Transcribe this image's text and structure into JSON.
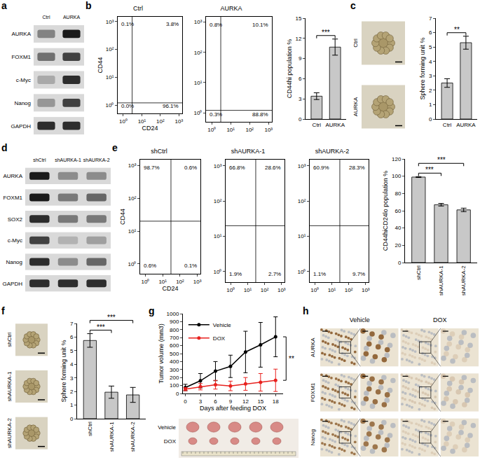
{
  "chart_data": [
    {
      "panel": "b",
      "type": "scatter",
      "title": "Ctrl",
      "log": true,
      "xlabel": "CD24",
      "ylabel": "CD44",
      "xlim": [
        0.5,
        1500
      ],
      "ylim": [
        0.5,
        1500
      ],
      "xticks": [
        {
          "value": 1,
          "label": "10⁰"
        },
        {
          "value": 10,
          "label": "10¹"
        },
        {
          "value": 100,
          "label": "10²"
        },
        {
          "value": 1000,
          "label": "10³"
        }
      ],
      "yticks": [
        {
          "value": 1,
          "label": "10⁰"
        },
        {
          "value": 10,
          "label": "10¹"
        },
        {
          "value": 100,
          "label": "10²"
        },
        {
          "value": 1000,
          "label": "10³"
        }
      ],
      "quadrant_gate": {
        "x": 3,
        "y": 1.2
      },
      "annotations": [
        "0.1%",
        "3.8%",
        "0.0%",
        "96.1%"
      ]
    },
    {
      "panel": "b",
      "type": "scatter",
      "title": "AURKA",
      "log": true,
      "xlim": [
        0.5,
        1500
      ],
      "ylim": [
        0.5,
        1500
      ],
      "xticks": [
        {
          "value": 1,
          "label": "10⁰"
        },
        {
          "value": 10,
          "label": "10¹"
        },
        {
          "value": 100,
          "label": "10²"
        },
        {
          "value": 1000,
          "label": "10³"
        }
      ],
      "yticks": [
        {
          "value": 1,
          "label": "10⁰"
        },
        {
          "value": 10,
          "label": "10¹"
        },
        {
          "value": 100,
          "label": "10²"
        },
        {
          "value": 1000,
          "label": "10³"
        }
      ],
      "quadrant_gate": {
        "x": 3,
        "y": 1.2
      },
      "annotations": [
        "0.8%",
        "10.1%",
        "0.3%",
        "88.8%"
      ]
    },
    {
      "panel": "b",
      "type": "bar",
      "ylabel": "CD44hi population %",
      "categories": [
        "Ctrl",
        "AURKA"
      ],
      "values": [
        3.4,
        10.7
      ],
      "errors": [
        0.5,
        1.2
      ],
      "color": "#c8c8c8",
      "grid": false,
      "ylim": [
        0,
        15
      ],
      "yticks": [
        0,
        3,
        6,
        9,
        12,
        15
      ],
      "significance": [
        {
          "from": "Ctrl",
          "to": "AURKA",
          "label": "***"
        }
      ]
    },
    {
      "panel": "c",
      "type": "bar",
      "ylabel": "Sphere forming unit %",
      "categories": [
        "Ctrl",
        "AURKA"
      ],
      "values": [
        2.5,
        5.3
      ],
      "errors": [
        0.3,
        0.45
      ],
      "color": "#c8c8c8",
      "grid": false,
      "ylim": [
        0,
        7
      ],
      "yticks": [
        0,
        1,
        2,
        3,
        4,
        5,
        6,
        7
      ],
      "significance": [
        {
          "from": "Ctrl",
          "to": "AURKA",
          "label": "**"
        }
      ]
    },
    {
      "panel": "e",
      "type": "scatter",
      "title": "shCtrl",
      "log": true,
      "xlabel": "CD24",
      "ylabel": "CD44",
      "xlim": [
        0.5,
        1500
      ],
      "ylim": [
        0.5,
        1500
      ],
      "xticks": [
        {
          "value": 1,
          "label": "10⁰"
        },
        {
          "value": 10,
          "label": "10¹"
        },
        {
          "value": 100,
          "label": "10²"
        },
        {
          "value": 1000,
          "label": "10³"
        }
      ],
      "yticks": [
        {
          "value": 1,
          "label": "10⁰"
        },
        {
          "value": 10,
          "label": "10¹"
        },
        {
          "value": 100,
          "label": "10²"
        },
        {
          "value": 1000,
          "label": "10³"
        }
      ],
      "quadrant_gate": {
        "x": 30,
        "y": 20
      },
      "annotations": [
        "98.7%",
        "0.6%",
        "0.6%",
        "0.1%"
      ]
    },
    {
      "panel": "e",
      "type": "scatter",
      "title": "shAURKA-1",
      "log": true,
      "xlim": [
        0.5,
        1500
      ],
      "ylim": [
        0.5,
        1500
      ],
      "xticks": [
        {
          "value": 1,
          "label": "10⁰"
        },
        {
          "value": 10,
          "label": "10¹"
        },
        {
          "value": 100,
          "label": "10²"
        },
        {
          "value": 1000,
          "label": "10³"
        }
      ],
      "yticks": [
        {
          "value": 1,
          "label": "10⁰"
        },
        {
          "value": 10,
          "label": "10¹"
        },
        {
          "value": 100,
          "label": "10²"
        },
        {
          "value": 1000,
          "label": "10³"
        }
      ],
      "quadrant_gate": {
        "x": 30,
        "y": 20
      },
      "annotations": [
        "66.8%",
        "28.6%",
        "1.9%",
        "2.7%"
      ]
    },
    {
      "panel": "e",
      "type": "scatter",
      "title": "shAURKA-2",
      "log": true,
      "xlim": [
        0.5,
        1500
      ],
      "ylim": [
        0.5,
        1500
      ],
      "xticks": [
        {
          "value": 1,
          "label": "10⁰"
        },
        {
          "value": 10,
          "label": "10¹"
        },
        {
          "value": 100,
          "label": "10²"
        },
        {
          "value": 1000,
          "label": "10³"
        }
      ],
      "yticks": [
        {
          "value": 1,
          "label": "10⁰"
        },
        {
          "value": 10,
          "label": "10¹"
        },
        {
          "value": 100,
          "label": "10²"
        },
        {
          "value": 1000,
          "label": "10³"
        }
      ],
      "quadrant_gate": {
        "x": 30,
        "y": 20
      },
      "annotations": [
        "60.9%",
        "28.3%",
        "1.1%",
        "9.7%"
      ]
    },
    {
      "panel": "e",
      "type": "bar",
      "ylabel": "CD44hiCD24lo population %",
      "categories": [
        "shCtrl",
        "shAURKA-1",
        "shAURKA-2"
      ],
      "values": [
        99,
        67,
        61
      ],
      "errors": [
        0.5,
        1.5,
        2
      ],
      "color": "#c8c8c8",
      "grid": false,
      "ylim": [
        0,
        120
      ],
      "yticks": [
        0,
        20,
        40,
        60,
        80,
        100,
        120
      ],
      "significance": [
        {
          "from": "shCtrl",
          "to": "shAURKA-1",
          "label": "***"
        },
        {
          "from": "shCtrl",
          "to": "shAURKA-2",
          "label": "***"
        }
      ]
    },
    {
      "panel": "f",
      "type": "bar",
      "ylabel": "Sphere forming unit %",
      "categories": [
        "shCtrl",
        "shAURKA-1",
        "shAURKA-2"
      ],
      "values": [
        5.75,
        1.95,
        1.75
      ],
      "errors": [
        0.5,
        0.45,
        0.55
      ],
      "color": "#c8c8c8",
      "grid": false,
      "ylim": [
        0,
        7
      ],
      "yticks": [
        0,
        1,
        2,
        3,
        4,
        5,
        6,
        7
      ],
      "significance": [
        {
          "from": "shCtrl",
          "to": "shAURKA-1",
          "label": "***"
        },
        {
          "from": "shCtrl",
          "to": "shAURKA-2",
          "label": "***"
        }
      ]
    },
    {
      "panel": "g",
      "type": "line",
      "xlabel": "Days after feeding DOX",
      "ylabel": "Tumor volume (mm3)",
      "x": [
        0,
        3,
        6,
        9,
        12,
        15,
        18
      ],
      "xlim": [
        -0.5,
        19.5
      ],
      "xticks": [
        0,
        3,
        6,
        9,
        12,
        15,
        18
      ],
      "ylim": [
        0,
        1000
      ],
      "yticks": [
        0,
        100,
        200,
        300,
        400,
        500,
        600,
        700,
        800,
        900,
        1000
      ],
      "legend": "top left",
      "grid": false,
      "series": [
        {
          "name": "Vehicle",
          "color": "#000000",
          "marker": "circle",
          "values": [
            75,
            160,
            280,
            340,
            520,
            610,
            710
          ],
          "errors": [
            40,
            90,
            120,
            140,
            260,
            280,
            250
          ]
        },
        {
          "name": "DOX",
          "color": "#e8211e",
          "marker": "circle",
          "values": [
            55,
            85,
            110,
            95,
            120,
            140,
            165
          ],
          "errors": [
            20,
            40,
            55,
            60,
            80,
            110,
            140
          ]
        }
      ],
      "significance": [
        {
          "from": "Vehicle",
          "to": "DOX",
          "label": "**"
        }
      ]
    }
  ],
  "figure_panels": {
    "a": {
      "lanes": [
        "Ctrl",
        "AURKA"
      ],
      "rows": [
        "AURKA",
        "FOXM1",
        "c-Myc",
        "Nanog",
        "GAPDH"
      ],
      "band_intensity": [
        [
          0.45,
          1.0
        ],
        [
          0.55,
          0.8
        ],
        [
          0.25,
          0.9
        ],
        [
          0.35,
          0.8
        ],
        [
          0.9,
          0.9
        ]
      ]
    },
    "c": {
      "images": [
        "Ctrl",
        "AURKA"
      ]
    },
    "d": {
      "lanes": [
        "shCtrl",
        "shAURKA-1",
        "shAURKA-2"
      ],
      "rows": [
        "AURKA",
        "FOXM1",
        "SOX2",
        "c-Myc",
        "Nanog",
        "GAPDH"
      ],
      "band_intensity": [
        [
          1.0,
          0.4,
          0.4
        ],
        [
          1.0,
          0.5,
          0.6
        ],
        [
          0.9,
          0.5,
          0.5
        ],
        [
          0.8,
          0.2,
          0.3
        ],
        [
          0.9,
          0.4,
          0.6
        ],
        [
          0.9,
          0.9,
          0.9
        ]
      ]
    },
    "f": {
      "images": [
        "shCtrl",
        "shAURKA-1",
        "shAURKA-2"
      ]
    },
    "g": {
      "photo_rows": [
        "Vehicle",
        "DOX"
      ]
    },
    "h": {
      "columns": [
        "Vehicle",
        "DOX"
      ],
      "rows": [
        "AURKA",
        "FOXM1",
        "Nanog"
      ],
      "staining": [
        [
          0.9,
          0.15
        ],
        [
          0.85,
          0.2
        ],
        [
          0.8,
          0.15
        ]
      ]
    }
  }
}
